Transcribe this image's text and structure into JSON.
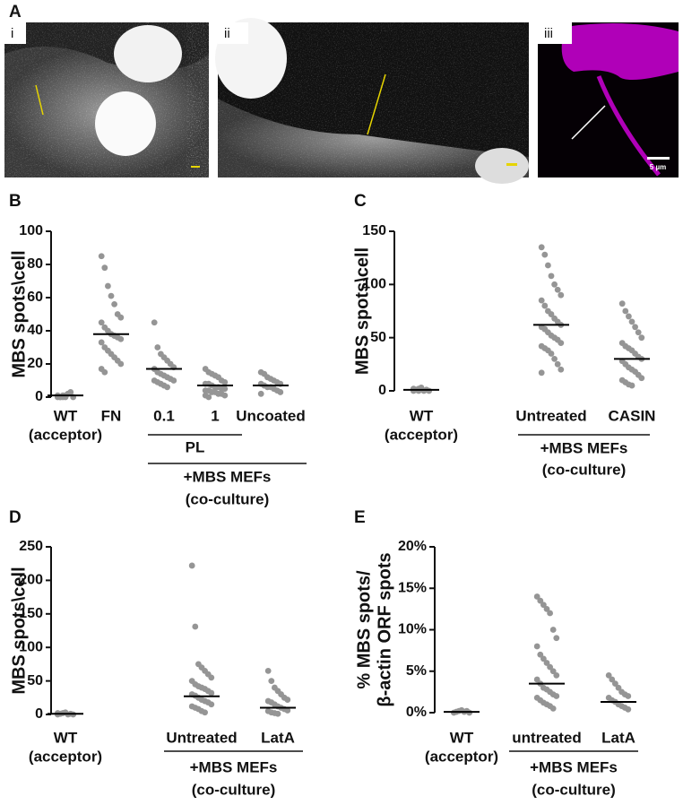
{
  "panel_a": {
    "label": "A",
    "images": [
      {
        "label": "i"
      },
      {
        "label": "ii"
      },
      {
        "label": "iii",
        "scale_bar": "5 µm"
      }
    ]
  },
  "chart_data": [
    {
      "type": "dotplot",
      "panel": "B",
      "y_label": [
        "MBS spots\\cell"
      ],
      "categories": [
        "WT",
        "FN",
        "0.1",
        "1",
        "Uncoated"
      ],
      "category_note": "(acceptor)",
      "subgroup_label": "PL",
      "group_label": [
        "+MBS MEFs",
        "(co-culture)"
      ],
      "points": [
        [
          0,
          0,
          1,
          0,
          2,
          3,
          0,
          1,
          0,
          0,
          1,
          2
        ],
        [
          85,
          78,
          67,
          61,
          56,
          50,
          48,
          45,
          42,
          40,
          38,
          37,
          36,
          35,
          33,
          30,
          28,
          26,
          24,
          22,
          20,
          17,
          15
        ],
        [
          45,
          30,
          26,
          24,
          22,
          20,
          18,
          17,
          15,
          14,
          13,
          12,
          11,
          10,
          10,
          9,
          8,
          7,
          6
        ],
        [
          17,
          15,
          14,
          13,
          12,
          10,
          9,
          8,
          8,
          7,
          6,
          6,
          5,
          5,
          4,
          4,
          3,
          3,
          2,
          2,
          1,
          1,
          0
        ],
        [
          15,
          14,
          12,
          11,
          10,
          9,
          8,
          8,
          7,
          6,
          6,
          5,
          4,
          3,
          2
        ]
      ],
      "means": [
        1,
        38,
        17,
        7,
        7
      ],
      "color": "#959595",
      "ylim": [
        0,
        100
      ],
      "yticks": [
        0,
        20,
        40,
        60,
        80,
        100
      ]
    },
    {
      "type": "dotplot",
      "panel": "C",
      "y_label": [
        "MBS spots\\cell"
      ],
      "categories": [
        "WT",
        "Untreated",
        "CASIN"
      ],
      "category_note": "(acceptor)",
      "group_label": [
        "+MBS MEFs",
        "(co-culture)"
      ],
      "points": [
        [
          0,
          1,
          2,
          3,
          0,
          1,
          0,
          2,
          1,
          0
        ],
        [
          135,
          128,
          118,
          108,
          100,
          95,
          90,
          85,
          80,
          75,
          72,
          68,
          65,
          62,
          60,
          58,
          55,
          52,
          50,
          48,
          45,
          42,
          40,
          38,
          35,
          30,
          25,
          20,
          17
        ],
        [
          82,
          75,
          70,
          65,
          60,
          55,
          50,
          45,
          42,
          40,
          38,
          35,
          32,
          30,
          28,
          25,
          22,
          20,
          18,
          15,
          12,
          10,
          8,
          6,
          5
        ]
      ],
      "means": [
        1,
        62,
        30
      ],
      "color": "#959595",
      "ylim": [
        0,
        150
      ],
      "yticks": [
        0,
        50,
        100,
        150
      ]
    },
    {
      "type": "dotplot",
      "panel": "D",
      "y_label": [
        "MBS spots\\cell"
      ],
      "categories": [
        "WT",
        "Untreated",
        "LatA"
      ],
      "category_note": "(acceptor)",
      "group_label": [
        "+MBS MEFs",
        "(co-culture)"
      ],
      "points": [
        [
          0,
          1,
          2,
          3,
          0,
          1,
          0,
          2,
          1
        ],
        [
          222,
          131,
          75,
          70,
          65,
          60,
          55,
          50,
          45,
          42,
          40,
          38,
          35,
          32,
          30,
          28,
          25,
          22,
          20,
          18,
          15,
          12,
          10,
          8,
          5,
          3
        ],
        [
          65,
          50,
          40,
          35,
          30,
          25,
          22,
          20,
          18,
          15,
          12,
          10,
          8,
          6,
          5,
          3,
          2,
          1
        ]
      ],
      "means": [
        1,
        27,
        10
      ],
      "color": "#959595",
      "ylim": [
        0,
        250
      ],
      "yticks": [
        0,
        50,
        100,
        150,
        200,
        250
      ]
    },
    {
      "type": "dotplot",
      "panel": "E",
      "y_label": [
        "% MBS spots/",
        "β-actin ORF spots"
      ],
      "categories": [
        "WT",
        "untreated",
        "LatA"
      ],
      "category_note": "(acceptor)",
      "group_label": [
        "+MBS MEFs",
        "(co-culture)"
      ],
      "points": [
        [
          0,
          0.1,
          0.2,
          0.3,
          0.1,
          0.2,
          0
        ],
        [
          14,
          13.5,
          13,
          12.5,
          12,
          10,
          9,
          8,
          7,
          6.5,
          6,
          5.5,
          5,
          4.5,
          4,
          3.5,
          3,
          2.8,
          2.5,
          2.2,
          2,
          1.8,
          1.5,
          1.2,
          1,
          0.8,
          0.5
        ],
        [
          4.5,
          4,
          3.5,
          3,
          2.5,
          2.2,
          2,
          1.8,
          1.5,
          1.3,
          1,
          0.8,
          0.6,
          0.4
        ]
      ],
      "means": [
        0.1,
        3.5,
        1.3
      ],
      "color": "#959595",
      "ylim": [
        0,
        20
      ],
      "yticks": [
        {
          "value": 0,
          "label": "0%"
        },
        {
          "value": 5,
          "label": "5%"
        },
        {
          "value": 10,
          "label": "10%"
        },
        {
          "value": 15,
          "label": "15%"
        },
        {
          "value": 20,
          "label": "20%"
        }
      ]
    }
  ]
}
